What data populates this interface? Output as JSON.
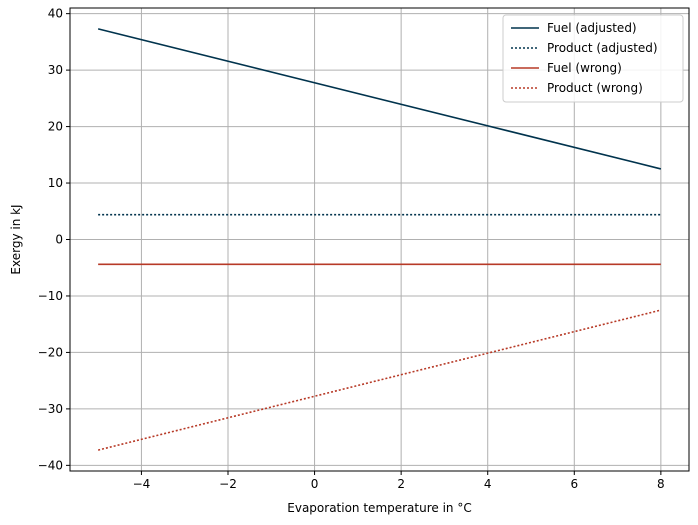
{
  "chart_data": {
    "type": "line",
    "title": "",
    "xlabel": "Evaporation temperature in °C",
    "ylabel": "Exergy in kJ",
    "xlim": [
      -5.65,
      8.65
    ],
    "ylim": [
      -41,
      41
    ],
    "xticks": [
      -4,
      -2,
      0,
      2,
      4,
      6,
      8
    ],
    "yticks": [
      -40,
      -30,
      -20,
      -10,
      0,
      10,
      20,
      30,
      40
    ],
    "grid": true,
    "legend_position": "top-right",
    "series": [
      {
        "name": "Fuel (adjusted)",
        "color": "#00334d",
        "style": "solid",
        "x": [
          -5,
          8
        ],
        "y": [
          37.3,
          12.5
        ]
      },
      {
        "name": "Product (adjusted)",
        "color": "#00334d",
        "style": "dotted",
        "x": [
          -5,
          8
        ],
        "y": [
          4.4,
          4.4
        ]
      },
      {
        "name": "Fuel (wrong)",
        "color": "#b73a27",
        "style": "solid",
        "x": [
          -5,
          8
        ],
        "y": [
          -4.4,
          -4.4
        ]
      },
      {
        "name": "Product (wrong)",
        "color": "#b73a27",
        "style": "dotted",
        "x": [
          -5,
          8
        ],
        "y": [
          -37.3,
          -12.5
        ]
      }
    ]
  }
}
